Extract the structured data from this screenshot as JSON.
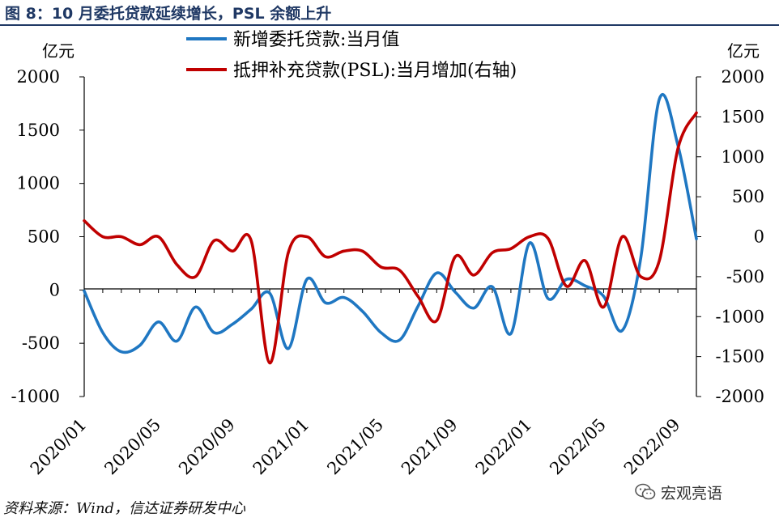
{
  "figure": {
    "title": "图 8：10 月委托贷款延续增长，PSL 余额上升",
    "source": "资料来源：Wind，信达证券研发中心",
    "watermark": "宏观亮语"
  },
  "colors": {
    "blue": "#1f77c2",
    "red": "#c00000",
    "title": "#1f3864",
    "axis": "#000000"
  },
  "chart_data": {
    "type": "line",
    "x": [
      "2020/01",
      "2020/02",
      "2020/03",
      "2020/04",
      "2020/05",
      "2020/06",
      "2020/07",
      "2020/08",
      "2020/09",
      "2020/10",
      "2020/11",
      "2020/12",
      "2021/01",
      "2021/02",
      "2021/03",
      "2021/04",
      "2021/05",
      "2021/06",
      "2021/07",
      "2021/08",
      "2021/09",
      "2021/10",
      "2021/11",
      "2021/12",
      "2022/01",
      "2022/02",
      "2022/03",
      "2022/04",
      "2022/05",
      "2022/06",
      "2022/07",
      "2022/08",
      "2022/09",
      "2022/10"
    ],
    "xticks": [
      "2020/01",
      "2020/05",
      "2020/09",
      "2021/01",
      "2021/05",
      "2021/09",
      "2022/01",
      "2022/05",
      "2022/09"
    ],
    "series": [
      {
        "name": "新增委托贷款:当月值",
        "axis": "left",
        "color": "#1f77c2",
        "values": [
          -10,
          -400,
          -580,
          -520,
          -300,
          -480,
          -160,
          -400,
          -320,
          -180,
          -30,
          -550,
          100,
          -120,
          -70,
          -200,
          -400,
          -470,
          -150,
          160,
          -20,
          -170,
          30,
          -410,
          440,
          -80,
          100,
          40,
          -60,
          -380,
          300,
          1790,
          1360,
          480
        ]
      },
      {
        "name": "抵押补充贷款(PSL):当月增加(右轴)",
        "axis": "right",
        "color": "#c00000",
        "values": [
          200,
          0,
          0,
          -100,
          0,
          -350,
          -500,
          -50,
          -180,
          -50,
          -1580,
          -200,
          0,
          -250,
          -180,
          -180,
          -380,
          -420,
          -750,
          -1050,
          -250,
          -480,
          -200,
          -150,
          0,
          -20,
          -620,
          -300,
          -880,
          0,
          -500,
          -300,
          1100,
          1550
        ]
      }
    ],
    "yaxis_left": {
      "label": "亿元",
      "min": -1000,
      "max": 2000,
      "ticks": [
        "2000",
        "1500",
        "1000",
        "500",
        "0",
        "-500",
        "-1000"
      ]
    },
    "yaxis_right": {
      "label": "亿元",
      "min": -2000,
      "max": 2000,
      "ticks": [
        "2000",
        "1500",
        "1000",
        "500",
        "0",
        "-500",
        "-1000",
        "-1500",
        "-2000"
      ]
    },
    "legend": {
      "placement": "top-center"
    }
  }
}
